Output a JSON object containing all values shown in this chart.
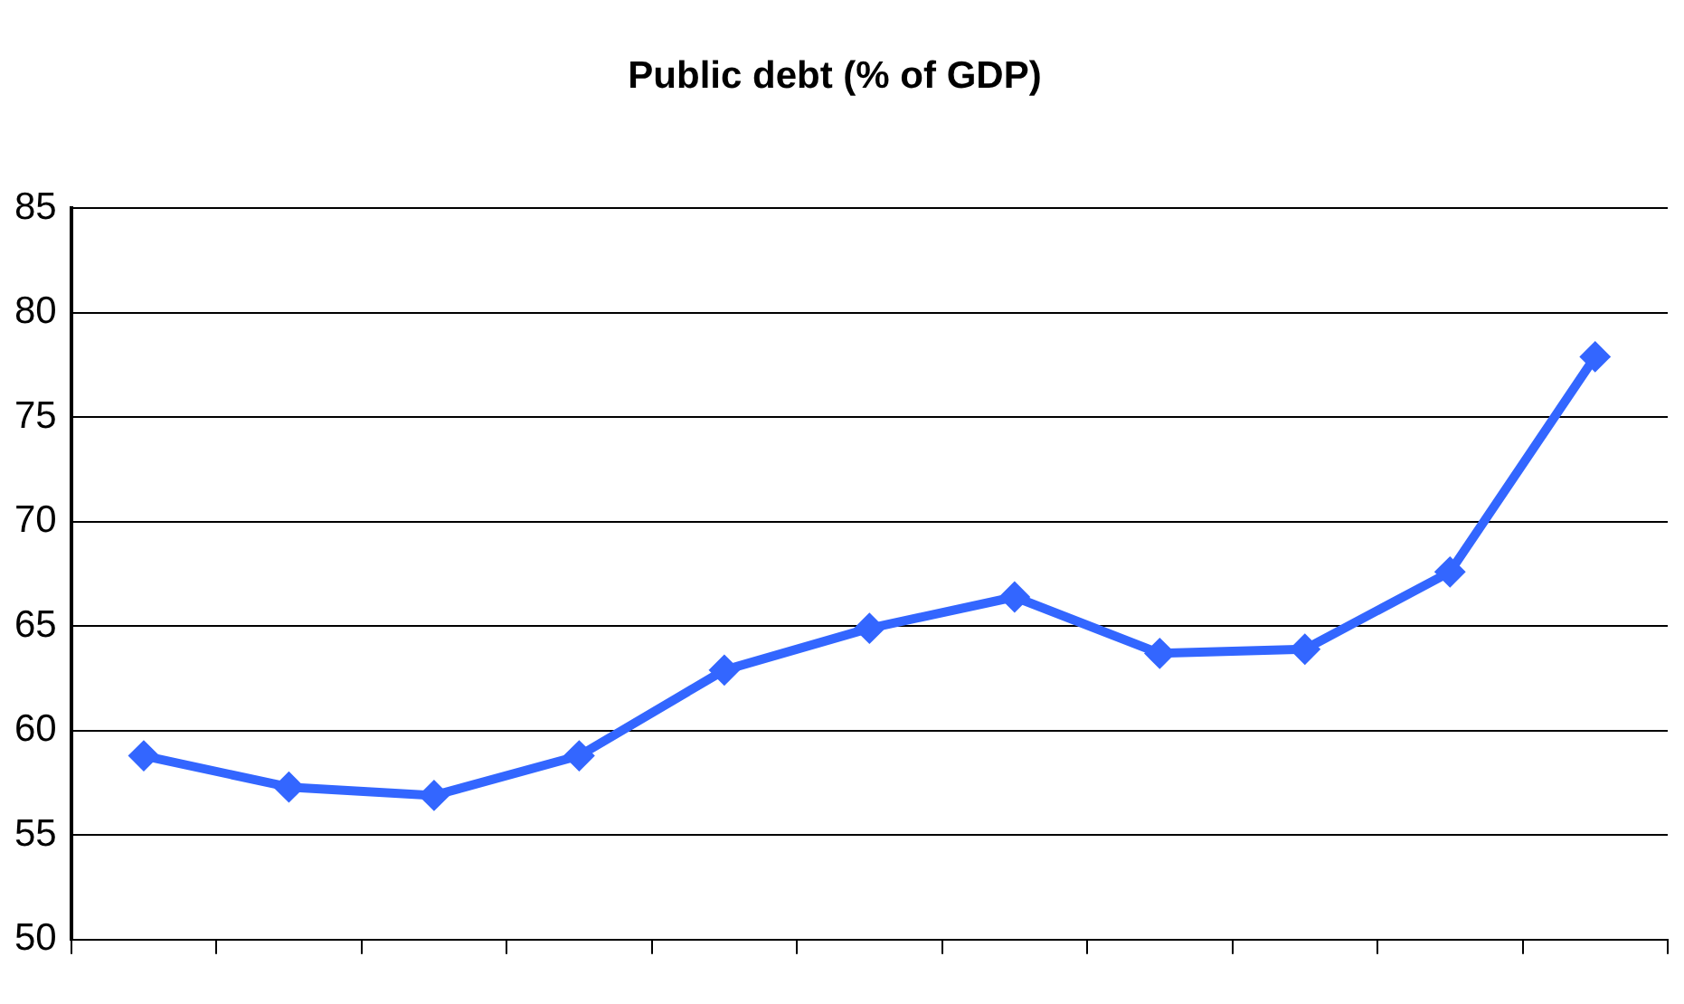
{
  "chart_data": {
    "type": "line",
    "title": "Public debt (% of GDP)",
    "categories": [
      null,
      null,
      null,
      null,
      null,
      null,
      null,
      null,
      null,
      null,
      null
    ],
    "series": [
      {
        "color": "#3366ff",
        "values": [
          58.8,
          57.3,
          56.9,
          58.8,
          62.9,
          64.9,
          66.4,
          63.7,
          63.9,
          67.6,
          77.9
        ]
      }
    ],
    "ylim": [
      50,
      85
    ],
    "yticks": [
      50,
      55,
      60,
      65,
      70,
      75,
      80,
      85
    ],
    "grid": "y",
    "legend": false,
    "marker": "diamond",
    "line_style": "solid"
  }
}
